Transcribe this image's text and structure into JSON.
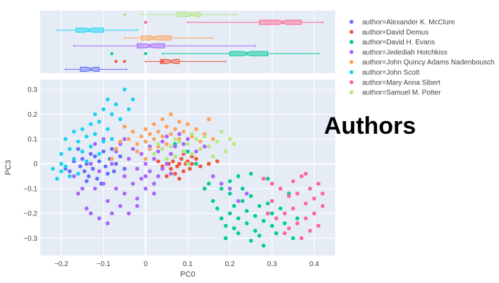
{
  "chart_data": {
    "type": "scatter",
    "title": "Authors",
    "xlabel": "PC0",
    "ylabel": "PC3",
    "xlim": [
      -0.25,
      0.45
    ],
    "ylim": [
      -0.37,
      0.34
    ],
    "xticks": [
      -0.2,
      -0.1,
      0,
      0.1,
      0.2,
      0.3,
      0.4
    ],
    "xtick_labels": [
      "−0.2",
      "−0.1",
      "0",
      "0.1",
      "0.2",
      "0.3",
      "0.4"
    ],
    "yticks": [
      -0.3,
      -0.2,
      -0.1,
      0,
      0.1,
      0.2,
      0.3
    ],
    "ytick_labels": [
      "−0.3",
      "−0.2",
      "−0.1",
      "0",
      "0.1",
      "0.2",
      "0.3"
    ],
    "grid": true,
    "legend_position": "right",
    "marginal_x": "box",
    "series": [
      {
        "name": "author=Alexander K. McClure",
        "color": "#636efa",
        "box": {
          "min": -0.19,
          "q1": -0.155,
          "median": -0.13,
          "q3": -0.11,
          "max": -0.045,
          "outliers": []
        },
        "points": [
          [
            -0.19,
            -0.02
          ],
          [
            -0.18,
            -0.03
          ],
          [
            -0.17,
            0.01
          ],
          [
            -0.16,
            -0.04
          ],
          [
            -0.155,
            -0.01
          ],
          [
            -0.15,
            0.02
          ],
          [
            -0.145,
            -0.03
          ],
          [
            -0.14,
            0.0
          ],
          [
            -0.135,
            -0.05
          ],
          [
            -0.13,
            0.04
          ],
          [
            -0.125,
            -0.02
          ],
          [
            -0.12,
            0.03
          ],
          [
            -0.115,
            -0.06
          ],
          [
            -0.11,
            0.01
          ],
          [
            -0.105,
            -0.08
          ],
          [
            -0.1,
            0.05
          ],
          [
            -0.095,
            -0.01
          ],
          [
            -0.09,
            -0.04
          ],
          [
            -0.085,
            0.02
          ],
          [
            -0.08,
            0.06
          ],
          [
            -0.075,
            -0.03
          ],
          [
            -0.07,
            0.0
          ],
          [
            -0.06,
            0.03
          ],
          [
            -0.05,
            -0.02
          ],
          [
            -0.16,
            0.06
          ],
          [
            -0.14,
            -0.07
          ]
        ]
      },
      {
        "name": "author=David Demus",
        "color": "#ef553b",
        "box": {
          "min": 0.0,
          "q1": 0.035,
          "median": 0.06,
          "q3": 0.08,
          "max": 0.19,
          "outliers": [
            -0.07,
            -0.05,
            0.04
          ]
        },
        "points": [
          [
            0.03,
            0.01
          ],
          [
            0.04,
            -0.01
          ],
          [
            0.05,
            0.02
          ],
          [
            0.055,
            0.0
          ],
          [
            0.06,
            -0.02
          ],
          [
            0.065,
            0.01
          ],
          [
            0.07,
            0.03
          ],
          [
            0.075,
            -0.01
          ],
          [
            0.08,
            0.0
          ],
          [
            0.085,
            0.02
          ],
          [
            0.09,
            -0.03
          ],
          [
            0.095,
            0.0
          ],
          [
            0.1,
            0.01
          ],
          [
            0.105,
            -0.02
          ],
          [
            0.11,
            0.0
          ],
          [
            0.12,
            0.02
          ],
          [
            0.13,
            -0.01
          ],
          [
            0.15,
            0.0
          ],
          [
            0.17,
            0.01
          ],
          [
            0.05,
            -0.05
          ],
          [
            0.07,
            -0.04
          ],
          [
            0.09,
            0.04
          ],
          [
            0.11,
            0.03
          ],
          [
            0.08,
            -0.06
          ]
        ]
      },
      {
        "name": "author=David H. Evans",
        "color": "#00cc96",
        "box": {
          "min": 0.04,
          "q1": 0.2,
          "median": 0.24,
          "q3": 0.29,
          "max": 0.41,
          "outliers": [
            -0.08,
            0.0
          ]
        },
        "points": [
          [
            0.07,
            0.08
          ],
          [
            0.1,
            0.05
          ],
          [
            0.15,
            -0.08
          ],
          [
            0.16,
            -0.15
          ],
          [
            0.17,
            -0.18
          ],
          [
            0.18,
            -0.22
          ],
          [
            0.19,
            -0.25
          ],
          [
            0.19,
            -0.3
          ],
          [
            0.2,
            -0.12
          ],
          [
            0.2,
            -0.2
          ],
          [
            0.21,
            -0.26
          ],
          [
            0.21,
            -0.17
          ],
          [
            0.22,
            -0.22
          ],
          [
            0.22,
            -0.28
          ],
          [
            0.23,
            -0.1
          ],
          [
            0.23,
            -0.15
          ],
          [
            0.24,
            -0.19
          ],
          [
            0.24,
            -0.24
          ],
          [
            0.25,
            -0.31
          ],
          [
            0.25,
            -0.13
          ],
          [
            0.26,
            -0.21
          ],
          [
            0.26,
            -0.27
          ],
          [
            0.27,
            -0.17
          ],
          [
            0.27,
            -0.29
          ],
          [
            0.28,
            -0.23
          ],
          [
            0.28,
            -0.33
          ],
          [
            0.29,
            -0.06
          ],
          [
            0.29,
            -0.16
          ],
          [
            0.3,
            -0.25
          ],
          [
            0.3,
            -0.2
          ],
          [
            0.31,
            -0.28
          ],
          [
            0.32,
            -0.18
          ],
          [
            0.33,
            -0.24
          ],
          [
            0.34,
            -0.12
          ],
          [
            0.35,
            -0.3
          ],
          [
            0.36,
            -0.22
          ],
          [
            0.2,
            -0.07
          ],
          [
            0.22,
            -0.05
          ],
          [
            0.14,
            -0.1
          ],
          [
            0.12,
            0.0
          ],
          [
            0.25,
            -0.04
          ],
          [
            0.18,
            -0.1
          ]
        ]
      },
      {
        "name": "author=Jedediah Hotchkiss",
        "color": "#ab63fa",
        "box": {
          "min": -0.17,
          "q1": -0.02,
          "median": 0.01,
          "q3": 0.045,
          "max": 0.26,
          "outliers": []
        },
        "points": [
          [
            -0.17,
            -0.05
          ],
          [
            -0.16,
            -0.12
          ],
          [
            -0.15,
            0.05
          ],
          [
            -0.14,
            -0.18
          ],
          [
            -0.13,
            -0.2
          ],
          [
            -0.12,
            0.08
          ],
          [
            -0.12,
            -0.1
          ],
          [
            -0.11,
            -0.22
          ],
          [
            -0.1,
            -0.08
          ],
          [
            -0.1,
            0.1
          ],
          [
            -0.09,
            -0.24
          ],
          [
            -0.09,
            -0.15
          ],
          [
            -0.08,
            0.0
          ],
          [
            -0.08,
            -0.2
          ],
          [
            -0.07,
            0.05
          ],
          [
            -0.07,
            -0.1
          ],
          [
            -0.06,
            -0.17
          ],
          [
            -0.06,
            0.08
          ],
          [
            -0.05,
            -0.05
          ],
          [
            -0.05,
            -0.12
          ],
          [
            -0.04,
            0.02
          ],
          [
            -0.04,
            -0.2
          ],
          [
            -0.03,
            -0.08
          ],
          [
            -0.03,
            0.06
          ],
          [
            -0.02,
            -0.02
          ],
          [
            -0.02,
            -0.14
          ],
          [
            -0.01,
            0.04
          ],
          [
            -0.01,
            -0.06
          ],
          [
            0.0,
            -0.1
          ],
          [
            0.0,
            0.0
          ],
          [
            0.01,
            -0.03
          ],
          [
            0.01,
            0.07
          ],
          [
            0.02,
            -0.08
          ],
          [
            0.02,
            0.02
          ],
          [
            0.03,
            -0.05
          ],
          [
            0.03,
            0.05
          ],
          [
            0.04,
            -0.02
          ],
          [
            0.04,
            0.09
          ],
          [
            0.05,
            0.0
          ],
          [
            0.05,
            0.11
          ],
          [
            0.06,
            0.04
          ],
          [
            0.07,
            0.07
          ],
          [
            0.08,
            0.12
          ],
          [
            0.09,
            0.08
          ],
          [
            0.1,
            0.1
          ],
          [
            0.12,
            0.05
          ],
          [
            0.14,
            0.07
          ],
          [
            0.16,
            -0.05
          ],
          [
            0.18,
            -0.08
          ],
          [
            0.2,
            -0.1
          ],
          [
            0.22,
            -0.15
          ],
          [
            0.24,
            -0.12
          ],
          [
            -0.11,
            -0.03
          ],
          [
            -0.13,
            0.0
          ],
          [
            -0.02,
            -0.17
          ],
          [
            0.0,
            -0.05
          ],
          [
            0.02,
            -0.12
          ],
          [
            -0.05,
            0.1
          ],
          [
            -0.15,
            -0.1
          ],
          [
            0.06,
            -0.04
          ]
        ]
      },
      {
        "name": "author=John Quincy Adams Nadenbousch",
        "color": "#ffa15a",
        "box": {
          "min": -0.05,
          "q1": -0.01,
          "median": 0.02,
          "q3": 0.06,
          "max": 0.16,
          "outliers": []
        },
        "points": [
          [
            -0.05,
            0.15
          ],
          [
            -0.04,
            0.1
          ],
          [
            -0.03,
            0.13
          ],
          [
            -0.02,
            0.08
          ],
          [
            -0.01,
            0.11
          ],
          [
            0.0,
            0.14
          ],
          [
            0.0,
            0.09
          ],
          [
            0.01,
            0.06
          ],
          [
            0.01,
            0.12
          ],
          [
            0.02,
            0.16
          ],
          [
            0.02,
            0.1
          ],
          [
            0.03,
            0.07
          ],
          [
            0.03,
            0.13
          ],
          [
            0.04,
            0.18
          ],
          [
            0.04,
            0.11
          ],
          [
            0.05,
            0.08
          ],
          [
            0.05,
            0.15
          ],
          [
            0.06,
            0.12
          ],
          [
            0.06,
            0.2
          ],
          [
            0.07,
            0.14
          ],
          [
            0.08,
            0.1
          ],
          [
            0.08,
            0.17
          ],
          [
            0.09,
            0.13
          ],
          [
            0.1,
            0.16
          ],
          [
            0.11,
            0.11
          ],
          [
            0.12,
            0.14
          ],
          [
            0.13,
            0.09
          ],
          [
            0.14,
            0.12
          ],
          [
            0.15,
            0.18
          ],
          [
            -0.07,
            0.06
          ],
          [
            -0.08,
            0.02
          ],
          [
            -0.06,
            0.09
          ],
          [
            0.0,
            0.02
          ],
          [
            0.02,
            0.04
          ],
          [
            -0.02,
            0.05
          ],
          [
            0.16,
            0.1
          ]
        ]
      },
      {
        "name": "author=John Scott",
        "color": "#19d3f3",
        "box": {
          "min": -0.21,
          "q1": -0.165,
          "median": -0.135,
          "q3": -0.1,
          "max": -0.02,
          "outliers": []
        },
        "points": [
          [
            -0.21,
            -0.06
          ],
          [
            -0.2,
            -0.03
          ],
          [
            -0.2,
            0.04
          ],
          [
            -0.19,
            0.1
          ],
          [
            -0.19,
            -0.01
          ],
          [
            -0.18,
            0.06
          ],
          [
            -0.18,
            -0.05
          ],
          [
            -0.17,
            0.13
          ],
          [
            -0.17,
            0.02
          ],
          [
            -0.16,
            0.09
          ],
          [
            -0.16,
            -0.04
          ],
          [
            -0.15,
            0.14
          ],
          [
            -0.15,
            0.05
          ],
          [
            -0.14,
            0.11
          ],
          [
            -0.14,
            0.01
          ],
          [
            -0.13,
            0.16
          ],
          [
            -0.13,
            0.07
          ],
          [
            -0.12,
            0.2
          ],
          [
            -0.12,
            0.12
          ],
          [
            -0.11,
            0.04
          ],
          [
            -0.11,
            0.17
          ],
          [
            -0.1,
            0.22
          ],
          [
            -0.1,
            0.09
          ],
          [
            -0.09,
            0.26
          ],
          [
            -0.09,
            0.14
          ],
          [
            -0.08,
            0.2
          ],
          [
            -0.08,
            0.1
          ],
          [
            -0.07,
            0.24
          ],
          [
            -0.06,
            0.18
          ],
          [
            -0.05,
            0.3
          ],
          [
            -0.04,
            0.22
          ],
          [
            -0.03,
            0.26
          ],
          [
            -0.2,
            0.0
          ],
          [
            -0.22,
            -0.02
          ]
        ]
      },
      {
        "name": "author=Mary Anna Sibert",
        "color": "#ff6692",
        "box": {
          "min": 0.1,
          "q1": 0.27,
          "median": 0.325,
          "q3": 0.37,
          "max": 0.42,
          "outliers": [
            0.0
          ]
        },
        "points": [
          [
            0.28,
            -0.06
          ],
          [
            0.3,
            -0.15
          ],
          [
            0.31,
            -0.22
          ],
          [
            0.32,
            -0.1
          ],
          [
            0.33,
            -0.2
          ],
          [
            0.34,
            -0.26
          ],
          [
            0.35,
            -0.07
          ],
          [
            0.35,
            -0.18
          ],
          [
            0.36,
            -0.24
          ],
          [
            0.36,
            -0.12
          ],
          [
            0.37,
            -0.3
          ],
          [
            0.37,
            -0.05
          ],
          [
            0.38,
            -0.16
          ],
          [
            0.38,
            -0.22
          ],
          [
            0.39,
            -0.1
          ],
          [
            0.39,
            -0.27
          ],
          [
            0.4,
            -0.14
          ],
          [
            0.4,
            -0.2
          ],
          [
            0.41,
            -0.08
          ],
          [
            0.41,
            -0.25
          ],
          [
            0.42,
            -0.17
          ],
          [
            0.42,
            -0.12
          ],
          [
            0.34,
            -0.13
          ],
          [
            0.33,
            -0.28
          ],
          [
            0.3,
            -0.08
          ],
          [
            0.38,
            -0.04
          ],
          [
            0.29,
            -0.2
          ]
        ]
      },
      {
        "name": "author=Samuel M. Potter",
        "color": "#b6e880",
        "box": {
          "min": -0.01,
          "q1": 0.075,
          "median": 0.11,
          "q3": 0.13,
          "max": 0.215,
          "outliers": [
            -0.05
          ]
        },
        "points": [
          [
            0.02,
            0.04
          ],
          [
            0.04,
            0.06
          ],
          [
            0.05,
            0.02
          ],
          [
            0.06,
            0.07
          ],
          [
            0.07,
            0.03
          ],
          [
            0.08,
            0.09
          ],
          [
            0.09,
            0.05
          ],
          [
            0.1,
            0.08
          ],
          [
            0.1,
            0.0
          ],
          [
            0.11,
            0.04
          ],
          [
            0.12,
            0.1
          ],
          [
            0.13,
            0.06
          ],
          [
            0.14,
            0.11
          ],
          [
            0.15,
            0.07
          ],
          [
            0.16,
            0.03
          ],
          [
            0.17,
            0.09
          ],
          [
            0.18,
            0.13
          ],
          [
            0.19,
            0.05
          ],
          [
            0.2,
            0.1
          ],
          [
            0.21,
            0.08
          ],
          [
            0.11,
            0.12
          ],
          [
            0.07,
            0.1
          ],
          [
            0.03,
            0.08
          ]
        ]
      }
    ]
  }
}
